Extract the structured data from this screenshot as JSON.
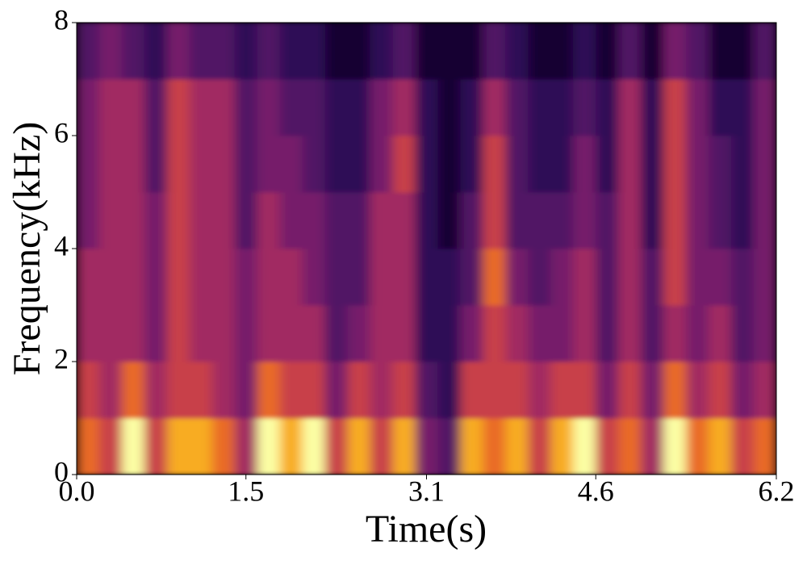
{
  "chart_data": {
    "type": "spectrogram",
    "xlabel": "Time(s)",
    "ylabel": "Frequency(kHz)",
    "xlim": [
      0,
      6.2
    ],
    "ylim": [
      0,
      8
    ],
    "xticks": [
      {
        "value": 0,
        "label": "0.0"
      },
      1.5,
      3.1,
      4.6,
      6.2
    ],
    "yticks": [
      0,
      2,
      4,
      6,
      8
    ],
    "colormap": "inferno",
    "zlim": [
      0,
      9
    ],
    "z": [
      [
        7,
        6,
        9,
        6,
        8,
        8,
        7,
        5,
        9,
        8,
        9,
        6,
        8,
        6,
        8,
        4,
        3,
        8,
        7,
        8,
        6,
        8,
        9,
        6,
        7,
        5,
        9,
        7,
        8,
        6,
        7
      ],
      [
        6,
        5,
        7,
        5,
        6,
        6,
        5,
        4,
        7,
        6,
        6,
        4,
        6,
        5,
        6,
        3,
        2,
        6,
        6,
        6,
        5,
        6,
        6,
        4,
        6,
        4,
        7,
        5,
        6,
        4,
        5
      ],
      [
        5,
        5,
        5,
        4,
        6,
        5,
        5,
        4,
        5,
        5,
        5,
        3,
        4,
        5,
        5,
        2,
        2,
        4,
        6,
        5,
        4,
        4,
        5,
        3,
        5,
        3,
        5,
        4,
        5,
        3,
        4
      ],
      [
        5,
        5,
        5,
        4,
        6,
        5,
        5,
        4,
        5,
        5,
        4,
        3,
        3,
        5,
        5,
        2,
        2,
        3,
        7,
        4,
        3,
        4,
        5,
        3,
        5,
        3,
        6,
        4,
        4,
        3,
        4
      ],
      [
        4,
        5,
        5,
        4,
        6,
        5,
        5,
        3,
        5,
        4,
        4,
        3,
        3,
        5,
        5,
        2,
        1,
        3,
        6,
        3,
        3,
        3,
        4,
        3,
        5,
        2,
        6,
        4,
        3,
        2,
        4
      ],
      [
        4,
        5,
        5,
        3,
        6,
        5,
        5,
        3,
        4,
        4,
        3,
        2,
        2,
        4,
        6,
        2,
        1,
        2,
        6,
        3,
        2,
        2,
        4,
        2,
        5,
        2,
        6,
        4,
        3,
        2,
        4
      ],
      [
        4,
        5,
        5,
        3,
        6,
        5,
        5,
        3,
        4,
        3,
        3,
        2,
        2,
        4,
        5,
        2,
        1,
        2,
        5,
        3,
        2,
        2,
        3,
        2,
        5,
        2,
        6,
        4,
        2,
        2,
        4
      ],
      [
        3,
        4,
        3,
        2,
        4,
        3,
        3,
        2,
        3,
        2,
        2,
        1,
        1,
        2,
        3,
        1,
        1,
        1,
        3,
        2,
        1,
        1,
        2,
        1,
        3,
        1,
        4,
        3,
        1,
        1,
        3
      ]
    ]
  }
}
